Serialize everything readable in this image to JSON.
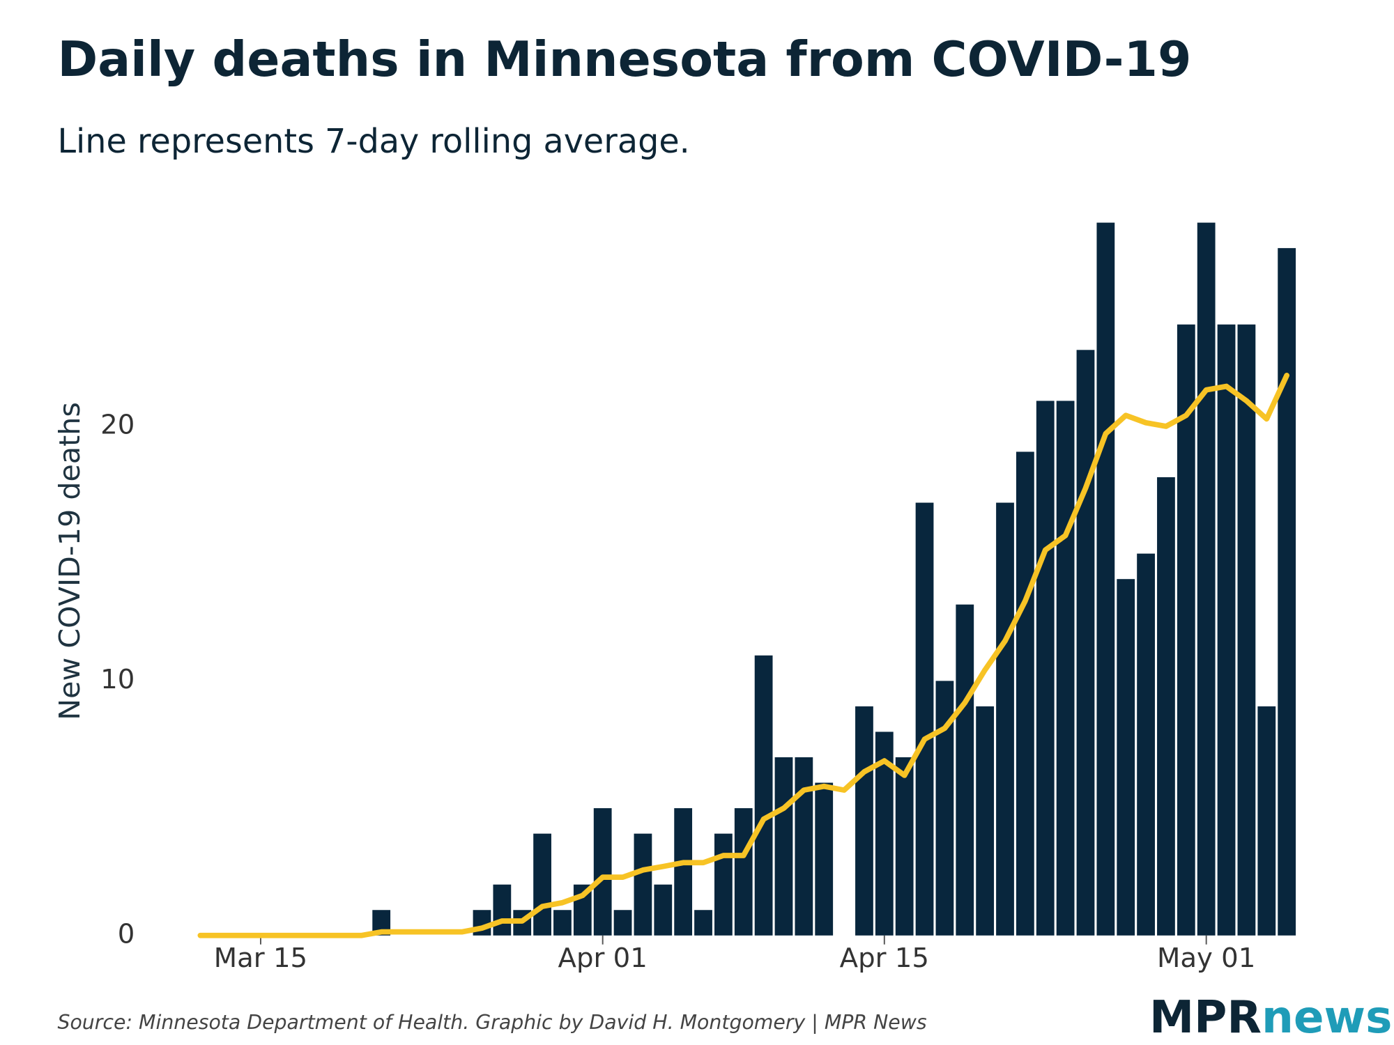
{
  "chart_data": {
    "type": "bar",
    "title": "Daily deaths in Minnesota from COVID-19",
    "subtitle": "Line represents 7-day rolling average.",
    "y_label": "New COVID-19 deaths",
    "source": "Source: Minnesota Department of Health. Graphic by David H. Montgomery | MPR News",
    "logo": [
      "MPR",
      "news"
    ],
    "categories": [
      null,
      null,
      null,
      "Mar 15",
      null,
      null,
      null,
      null,
      null,
      null,
      null,
      null,
      null,
      null,
      null,
      null,
      null,
      null,
      null,
      null,
      "Apr 01",
      null,
      null,
      null,
      null,
      null,
      null,
      null,
      null,
      null,
      null,
      null,
      null,
      null,
      "Apr 15",
      null,
      null,
      null,
      null,
      null,
      null,
      null,
      null,
      null,
      null,
      null,
      null,
      null,
      null,
      null,
      "May 01",
      null,
      null,
      null,
      null
    ],
    "series": [
      {
        "name": "Daily deaths",
        "type": "bar",
        "color": "#08263d",
        "values": [
          0,
          0,
          0,
          0,
          0,
          0,
          0,
          0,
          0,
          1,
          0,
          0,
          0,
          0,
          1,
          2,
          1,
          4,
          1,
          2,
          5,
          1,
          4,
          2,
          5,
          1,
          4,
          5,
          11,
          7,
          7,
          6,
          0,
          9,
          8,
          7,
          17,
          10,
          13,
          9,
          17,
          19,
          21,
          21,
          23,
          28,
          14,
          15,
          18,
          24,
          28,
          24,
          24,
          9,
          27
        ]
      },
      {
        "name": "7-day rolling average",
        "type": "line",
        "color": "#f7c325",
        "values": [
          0,
          0,
          0,
          0,
          0,
          0,
          0,
          0,
          0,
          0.14,
          0.14,
          0.14,
          0.14,
          0.14,
          0.29,
          0.57,
          0.57,
          1.14,
          1.29,
          1.57,
          2.29,
          2.29,
          2.57,
          2.71,
          2.86,
          2.86,
          3.14,
          3.14,
          4.57,
          5,
          5.71,
          5.86,
          5.71,
          6.43,
          6.86,
          6.29,
          7.71,
          8.14,
          9.14,
          10.43,
          11.57,
          13.14,
          15.14,
          15.71,
          17.57,
          19.71,
          20.43,
          20.14,
          20,
          20.43,
          21.43,
          21.57,
          21,
          20.29,
          22
        ]
      }
    ],
    "ylim": [
      0,
      28
    ],
    "yticks": [
      0,
      10,
      20
    ]
  }
}
